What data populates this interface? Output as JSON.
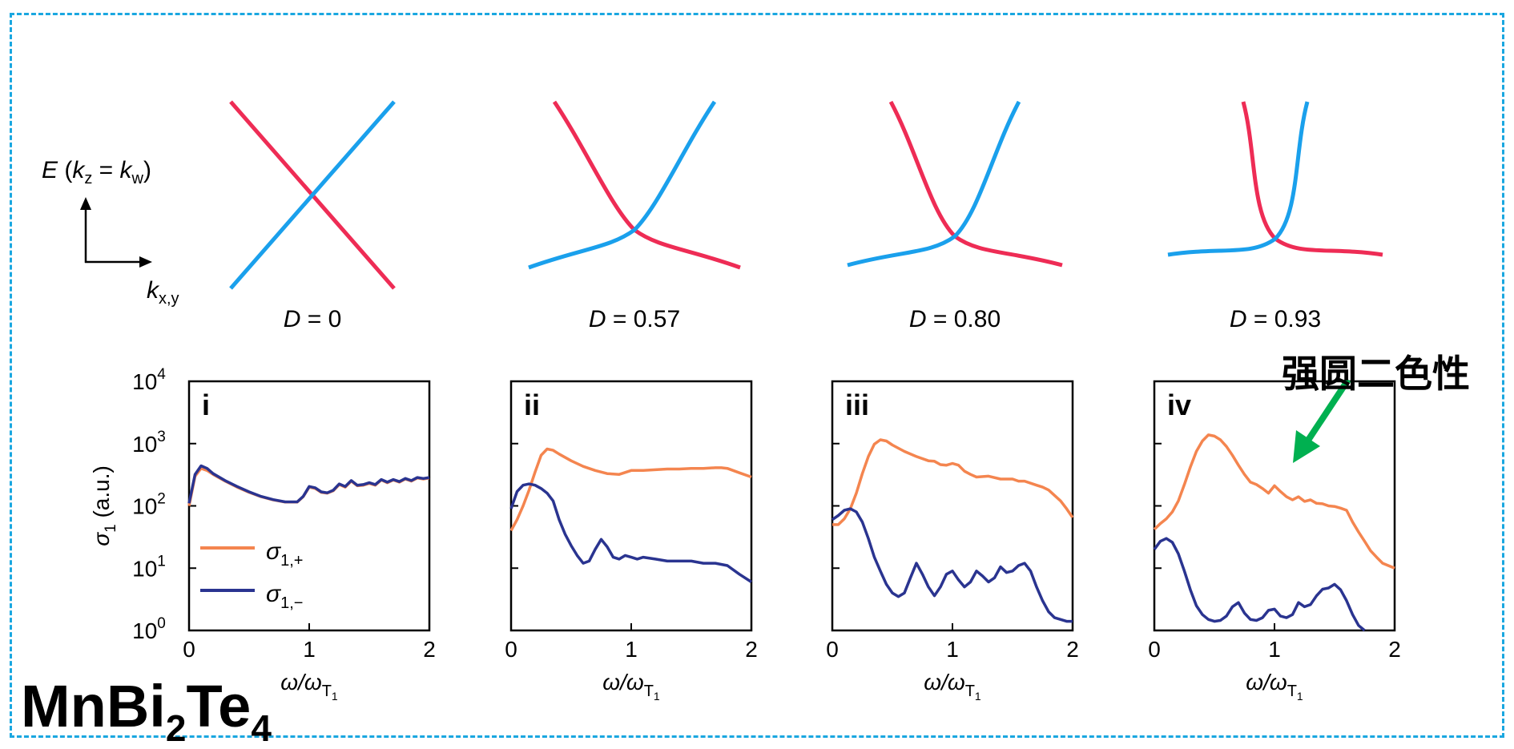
{
  "schematic": {
    "energy_axis": {
      "E": "E",
      "paren_open": " (",
      "kz": "k",
      "kz_sub": "z",
      "equals": " = ",
      "kw": "k",
      "kw_sub": "w",
      "paren_close": ")"
    },
    "k_axis": {
      "k": "k",
      "sub": "x,y"
    },
    "panels": [
      {
        "D_label": "D",
        "D_value": " = 0",
        "slope_inner": 1.0,
        "gap_soft": 0.0
      },
      {
        "D_label": "D",
        "D_value": " = 0.57",
        "slope_inner": 0.57,
        "gap_soft": 1.0
      },
      {
        "D_label": "D",
        "D_value": " = 0.80",
        "slope_inner": 0.8,
        "gap_soft": 1.0
      },
      {
        "D_label": "D",
        "D_value": " = 0.93",
        "slope_inner": 0.93,
        "gap_soft": 1.0
      }
    ],
    "colors": {
      "red_band": "#ee2c55",
      "blue_band": "#1aa0ec"
    }
  },
  "material": {
    "base": "MnBi",
    "sub1": "2",
    "mid": "Te",
    "sub2": "4"
  },
  "annotation": {
    "text": "强圆二色性",
    "arrow_color": "#00b050"
  },
  "legend": {
    "plus": {
      "sigma": "σ",
      "sub": "1,+"
    },
    "minus": {
      "sigma": "σ",
      "sub": "1,−"
    }
  },
  "frame_color": "#1aa7e0",
  "chart_data": [
    {
      "type": "line",
      "panel_label": "i",
      "ylabel": {
        "sigma": "σ",
        "sub": "1",
        "unit": " (a.u.)"
      },
      "xlabel": {
        "omega": "ω/ω",
        "sub": "T",
        "subsub": "1"
      },
      "xlim": [
        0,
        2
      ],
      "ylim_log10": [
        0,
        4
      ],
      "xticks": [
        "0",
        "1",
        "2"
      ],
      "yticks": [
        {
          "base": "10",
          "exp": "0"
        },
        {
          "base": "10",
          "exp": "1"
        },
        {
          "base": "10",
          "exp": "2"
        },
        {
          "base": "10",
          "exp": "3"
        },
        {
          "base": "10",
          "exp": "4"
        }
      ],
      "series": [
        {
          "name": "σ1,+",
          "color": "#f4854f",
          "x": [
            0,
            0.05,
            0.1,
            0.15,
            0.2,
            0.3,
            0.4,
            0.5,
            0.6,
            0.7,
            0.8,
            0.9,
            0.95,
            1.0,
            1.05,
            1.1,
            1.15,
            1.2,
            1.25,
            1.3,
            1.35,
            1.4,
            1.45,
            1.5,
            1.55,
            1.6,
            1.65,
            1.7,
            1.75,
            1.8,
            1.85,
            1.9,
            1.95,
            2.0
          ],
          "y": [
            100,
            300,
            400,
            370,
            320,
            250,
            200,
            165,
            140,
            125,
            115,
            115,
            140,
            200,
            190,
            165,
            160,
            175,
            220,
            200,
            250,
            210,
            215,
            230,
            215,
            260,
            235,
            260,
            240,
            270,
            250,
            280,
            270,
            280
          ]
        },
        {
          "name": "σ1,−",
          "color": "#2a3490",
          "x": [
            0,
            0.05,
            0.1,
            0.15,
            0.2,
            0.3,
            0.4,
            0.5,
            0.6,
            0.7,
            0.8,
            0.9,
            0.95,
            1.0,
            1.05,
            1.1,
            1.15,
            1.2,
            1.25,
            1.3,
            1.35,
            1.4,
            1.45,
            1.5,
            1.55,
            1.6,
            1.65,
            1.7,
            1.75,
            1.8,
            1.85,
            1.9,
            1.95,
            2.0
          ],
          "y": [
            110,
            320,
            440,
            400,
            330,
            255,
            205,
            168,
            142,
            126,
            116,
            116,
            142,
            205,
            195,
            168,
            162,
            178,
            225,
            205,
            255,
            215,
            220,
            235,
            220,
            265,
            240,
            265,
            245,
            275,
            255,
            285,
            275,
            285
          ]
        }
      ]
    },
    {
      "type": "line",
      "panel_label": "ii",
      "xlabel": {
        "omega": "ω/ω",
        "sub": "T",
        "subsub": "1"
      },
      "xlim": [
        0,
        2
      ],
      "ylim_log10": [
        0,
        4
      ],
      "xticks": [
        "0",
        "1",
        "2"
      ],
      "series": [
        {
          "name": "σ1,+",
          "color": "#f4854f",
          "x": [
            0,
            0.05,
            0.1,
            0.15,
            0.2,
            0.25,
            0.3,
            0.35,
            0.4,
            0.5,
            0.6,
            0.7,
            0.8,
            0.9,
            1.0,
            1.1,
            1.2,
            1.3,
            1.4,
            1.5,
            1.6,
            1.7,
            1.75,
            1.8,
            1.9,
            2.0
          ],
          "y": [
            40,
            60,
            100,
            180,
            350,
            650,
            820,
            780,
            680,
            530,
            430,
            370,
            330,
            320,
            370,
            370,
            380,
            390,
            390,
            400,
            400,
            410,
            410,
            400,
            340,
            290
          ]
        },
        {
          "name": "σ1,−",
          "color": "#2a3490",
          "x": [
            0,
            0.05,
            0.1,
            0.15,
            0.2,
            0.25,
            0.3,
            0.35,
            0.4,
            0.45,
            0.5,
            0.55,
            0.6,
            0.65,
            0.7,
            0.75,
            0.8,
            0.85,
            0.9,
            0.95,
            1.0,
            1.05,
            1.1,
            1.2,
            1.3,
            1.4,
            1.5,
            1.6,
            1.7,
            1.8,
            1.9,
            2.0
          ],
          "y": [
            90,
            170,
            215,
            225,
            215,
            190,
            160,
            120,
            60,
            35,
            23,
            16,
            12,
            13,
            20,
            29,
            22,
            15,
            14,
            16,
            15,
            14,
            15,
            14,
            13,
            13,
            13,
            12,
            12,
            11,
            8,
            6
          ]
        }
      ]
    },
    {
      "type": "line",
      "panel_label": "iii",
      "xlabel": {
        "omega": "ω/ω",
        "sub": "T",
        "subsub": "1"
      },
      "xlim": [
        0,
        2
      ],
      "ylim_log10": [
        0,
        4
      ],
      "xticks": [
        "0",
        "1",
        "2"
      ],
      "series": [
        {
          "name": "σ1,+",
          "color": "#f4854f",
          "x": [
            0,
            0.05,
            0.1,
            0.15,
            0.2,
            0.25,
            0.3,
            0.35,
            0.4,
            0.45,
            0.5,
            0.6,
            0.7,
            0.8,
            0.85,
            0.9,
            0.95,
            1.0,
            1.05,
            1.1,
            1.15,
            1.2,
            1.3,
            1.4,
            1.5,
            1.55,
            1.6,
            1.7,
            1.75,
            1.8,
            1.9,
            1.95,
            2.0
          ],
          "y": [
            50,
            50,
            62,
            90,
            160,
            330,
            620,
            980,
            1150,
            1100,
            950,
            750,
            620,
            530,
            520,
            460,
            450,
            480,
            450,
            360,
            320,
            290,
            300,
            270,
            270,
            250,
            250,
            215,
            200,
            180,
            120,
            90,
            65
          ]
        },
        {
          "name": "σ1,−",
          "color": "#2a3490",
          "x": [
            0,
            0.05,
            0.1,
            0.15,
            0.2,
            0.25,
            0.3,
            0.35,
            0.4,
            0.45,
            0.5,
            0.55,
            0.6,
            0.65,
            0.7,
            0.75,
            0.8,
            0.85,
            0.9,
            0.95,
            1.0,
            1.05,
            1.1,
            1.15,
            1.2,
            1.25,
            1.3,
            1.35,
            1.4,
            1.45,
            1.5,
            1.55,
            1.6,
            1.65,
            1.7,
            1.75,
            1.8,
            1.85,
            1.9,
            1.95,
            2.0
          ],
          "y": [
            60,
            70,
            85,
            90,
            80,
            55,
            30,
            15,
            9,
            5.5,
            4,
            3.5,
            4,
            7,
            12,
            8,
            5,
            3.6,
            5,
            8,
            9,
            6.5,
            5,
            6,
            9,
            7.5,
            6,
            7,
            10.5,
            8.5,
            9,
            11,
            12,
            9,
            5,
            3,
            2,
            1.6,
            1.5,
            1.4,
            1.4
          ]
        }
      ]
    },
    {
      "type": "line",
      "panel_label": "iv",
      "xlabel": {
        "omega": "ω/ω",
        "sub": "T",
        "subsub": "1"
      },
      "xlim": [
        0,
        2
      ],
      "ylim_log10": [
        0,
        4
      ],
      "xticks": [
        "0",
        "1",
        "2"
      ],
      "series": [
        {
          "name": "σ1,+",
          "color": "#f4854f",
          "x": [
            0,
            0.05,
            0.1,
            0.15,
            0.2,
            0.25,
            0.3,
            0.35,
            0.4,
            0.45,
            0.5,
            0.55,
            0.6,
            0.65,
            0.7,
            0.75,
            0.8,
            0.85,
            0.9,
            0.95,
            1.0,
            1.05,
            1.1,
            1.15,
            1.2,
            1.25,
            1.3,
            1.35,
            1.4,
            1.45,
            1.5,
            1.55,
            1.6,
            1.65,
            1.7,
            1.75,
            1.8,
            1.85,
            1.9,
            2.0
          ],
          "y": [
            42,
            52,
            62,
            80,
            120,
            220,
            420,
            750,
            1100,
            1380,
            1320,
            1150,
            900,
            650,
            450,
            320,
            240,
            220,
            190,
            160,
            210,
            170,
            140,
            125,
            140,
            118,
            125,
            110,
            108,
            100,
            98,
            92,
            85,
            55,
            38,
            27,
            19,
            15,
            12,
            10
          ]
        },
        {
          "name": "σ1,−",
          "color": "#2a3490",
          "x": [
            0,
            0.05,
            0.1,
            0.15,
            0.2,
            0.25,
            0.3,
            0.35,
            0.4,
            0.45,
            0.5,
            0.55,
            0.6,
            0.65,
            0.7,
            0.75,
            0.8,
            0.85,
            0.9,
            0.95,
            1.0,
            1.05,
            1.1,
            1.15,
            1.2,
            1.25,
            1.3,
            1.35,
            1.4,
            1.45,
            1.5,
            1.55,
            1.6,
            1.65,
            1.7,
            1.75
          ],
          "y": [
            20,
            27,
            30,
            26,
            17,
            9,
            4.5,
            2.5,
            1.8,
            1.5,
            1.4,
            1.45,
            1.7,
            2.4,
            2.8,
            1.9,
            1.5,
            1.45,
            1.6,
            2.1,
            2.2,
            1.7,
            1.6,
            1.8,
            2.8,
            2.4,
            2.6,
            3.6,
            4.6,
            4.8,
            5.5,
            4.5,
            3,
            1.8,
            1.2,
            0.9
          ]
        }
      ]
    }
  ]
}
